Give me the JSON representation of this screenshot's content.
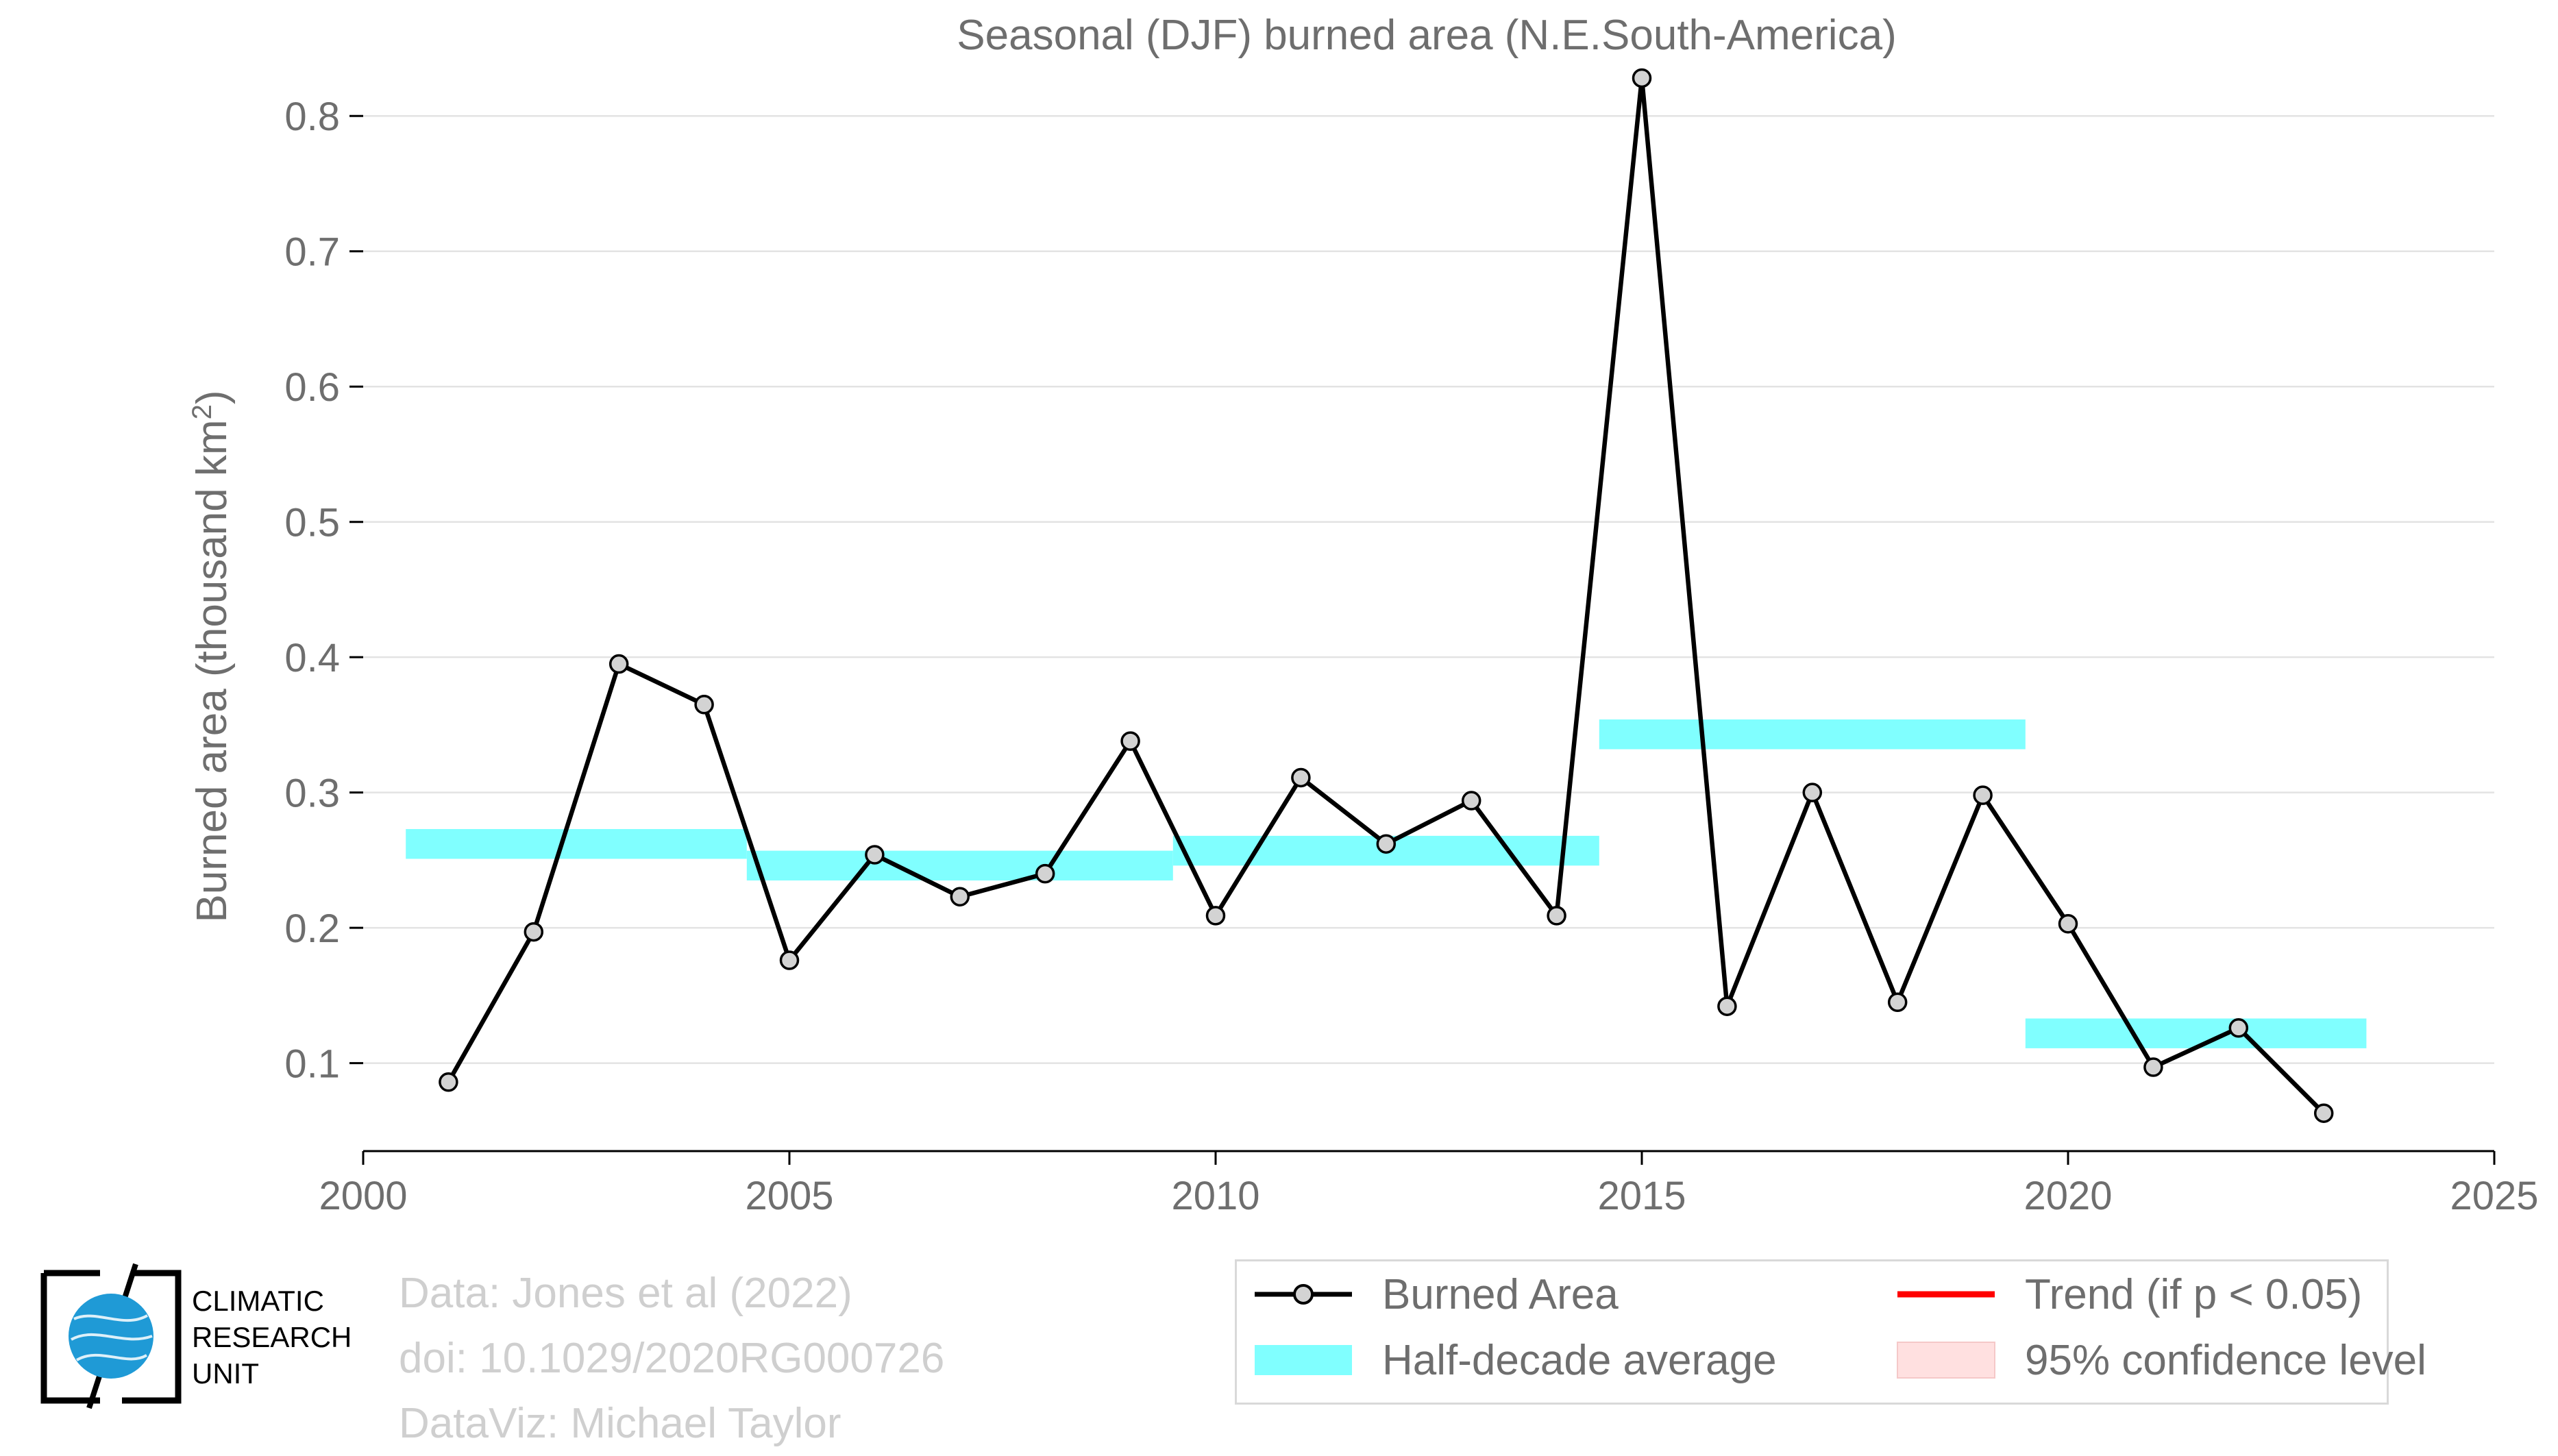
{
  "chart_data": {
    "type": "line",
    "title": "Seasonal (DJF) burned area (N.E.South-America)",
    "ylabel": "Burned area (thousand km²)",
    "ylabel_base": "Burned area (thousand km",
    "ylabel_sup": "2",
    "ylabel_tail": ")",
    "xlim": [
      2000,
      2025
    ],
    "ylim": [
      0.035,
      0.83
    ],
    "x_ticks": [
      2000,
      2005,
      2010,
      2015,
      2020,
      2025
    ],
    "y_ticks": [
      0.1,
      0.2,
      0.3,
      0.4,
      0.5,
      0.6,
      0.7,
      0.8
    ],
    "grid": "horizontal",
    "legend_position": "bottom-right",
    "series": [
      {
        "name": "Burned Area",
        "color": "#000000",
        "marker_fill": "#d3d3d3",
        "x": [
          2001,
          2002,
          2003,
          2004,
          2005,
          2006,
          2007,
          2008,
          2009,
          2010,
          2011,
          2012,
          2013,
          2014,
          2015,
          2016,
          2017,
          2018,
          2019,
          2020,
          2021,
          2022,
          2023
        ],
        "y": [
          0.086,
          0.197,
          0.395,
          0.365,
          0.176,
          0.254,
          0.223,
          0.24,
          0.338,
          0.209,
          0.311,
          0.262,
          0.294,
          0.209,
          0.828,
          0.142,
          0.3,
          0.145,
          0.298,
          0.203,
          0.097,
          0.126,
          0.063
        ]
      }
    ],
    "half_decade_average": {
      "name": "Half-decade average",
      "color": "#80ffff",
      "segments": [
        {
          "x0": 2000.5,
          "x1": 2004.5,
          "y": 0.262
        },
        {
          "x0": 2004.5,
          "x1": 2009.5,
          "y": 0.246
        },
        {
          "x0": 2009.5,
          "x1": 2014.5,
          "y": 0.257
        },
        {
          "x0": 2014.5,
          "x1": 2019.5,
          "y": 0.343
        },
        {
          "x0": 2019.5,
          "x1": 2023.5,
          "y": 0.122
        }
      ]
    },
    "legend": [
      {
        "label": "Burned Area",
        "kind": "line-marker",
        "color": "#000000"
      },
      {
        "label": "Trend (if p < 0.05)",
        "kind": "line",
        "color": "#ff0000"
      },
      {
        "label": "Half-decade average",
        "kind": "band",
        "color": "#80ffff"
      },
      {
        "label": "95% confidence level",
        "kind": "band",
        "color": "#ffe0e0"
      }
    ]
  },
  "credits": {
    "line1": "Data: Jones et al (2022)",
    "line2": "doi: 10.1029/2020RG000726",
    "line3": "DataViz: Michael Taylor"
  },
  "logo": {
    "line1": "CLIMATIC",
    "line2": "RESEARCH",
    "line3": "UNIT",
    "globe_color": "#1f9ad6"
  }
}
